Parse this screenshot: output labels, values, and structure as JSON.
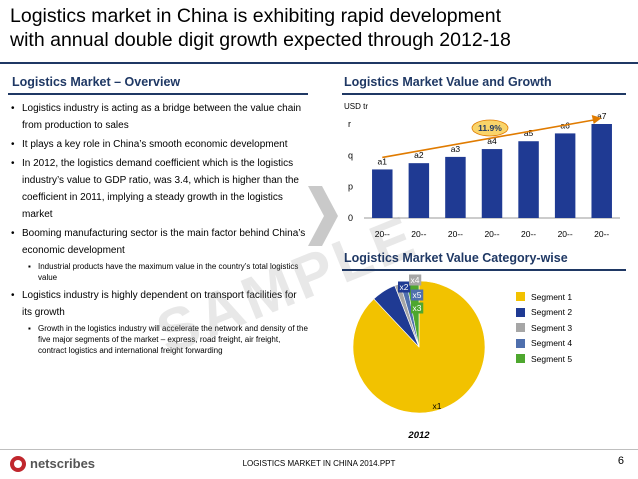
{
  "title_line1": "Logistics market in China is exhibiting rapid development",
  "title_line2": "with annual double digit growth expected through 2012-18",
  "overview": {
    "heading": "Logistics Market – Overview",
    "bullets": [
      {
        "text": "Logistics industry is acting as a bridge between the value chain from production to sales",
        "subs": []
      },
      {
        "text": "It plays a key role in China’s smooth economic development",
        "subs": []
      },
      {
        "text": "In 2012, the logistics demand coefficient which is the logistics industry’s value to GDP ratio, was 3.4, which is higher than the coefficient in 2011, implying a steady growth in the logistics market",
        "subs": []
      },
      {
        "text": "Booming manufacturing sector is the main factor behind China’s economic development",
        "subs": [
          "Industrial products have the maximum value in the country’s total logistics value"
        ]
      },
      {
        "text": "Logistics industry is highly dependent on transport facilities for its growth",
        "subs": [
          "Growth in the logistics industry will accelerate the network and density of the five major segments of the market – express, road freight, air freight, contract logistics and international freight forwarding"
        ]
      }
    ]
  },
  "watermark": "SAMPLE",
  "footer": {
    "text": "LOGISTICS MARKET IN CHINA 2014.PPT",
    "page": "6",
    "logo_text": "netscribes"
  },
  "colors": {
    "bar": "#1f3a93",
    "navy": "#1f3864",
    "cagr_fill": "#f9d46a",
    "cagr_text": "#1f3864"
  },
  "chart_data": [
    {
      "type": "bar",
      "title": "Logistics Market Value and Growth",
      "ylabel": "USD tr",
      "y_ticks": [
        "0",
        "p",
        "q",
        "r"
      ],
      "categories": [
        "20--",
        "20--",
        "20--",
        "20--",
        "20--",
        "20--",
        "20--"
      ],
      "values": [
        1.55,
        1.75,
        1.95,
        2.2,
        2.45,
        2.7,
        3.0
      ],
      "value_labels": [
        "a1",
        "a2",
        "a3",
        "a4",
        "a5",
        "a6",
        "a7"
      ],
      "ylim": [
        0,
        3
      ],
      "cagr_label": "11.9%"
    },
    {
      "type": "pie",
      "title": "Logistics Market Value Category-wise",
      "year": "2012",
      "series": [
        {
          "name": "Segment 1",
          "label": "x1",
          "value": 88.0,
          "color": "#f2c200"
        },
        {
          "name": "Segment 2",
          "label": "x2",
          "value": 6.0,
          "color": "#1f3a93"
        },
        {
          "name": "Segment 3",
          "label": "x4",
          "value": 1.4,
          "color": "#a6a6a6"
        },
        {
          "name": "Segment 4",
          "label": "x5",
          "value": 1.6,
          "color": "#4f6fad"
        },
        {
          "name": "Segment 5",
          "label": "x3",
          "value": 3.0,
          "color": "#4ea72e"
        }
      ]
    }
  ]
}
